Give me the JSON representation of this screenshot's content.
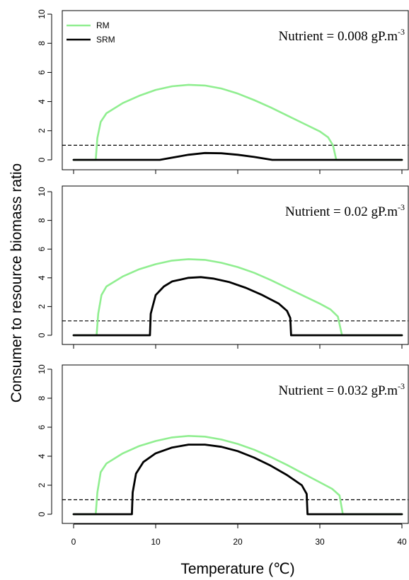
{
  "chart_data": {
    "type": "line",
    "ylabel": "Consumer to resource biomass ratio",
    "xlabel": "Temperature (℃)",
    "xlim": [
      0,
      40
    ],
    "ylim": [
      0,
      10
    ],
    "x_ticks": [
      0,
      10,
      20,
      30,
      40
    ],
    "y_ticks": [
      0,
      2,
      4,
      6,
      8,
      10
    ],
    "legend": {
      "position": "top-left",
      "entries": [
        {
          "name": "RM",
          "color": "#90ee90"
        },
        {
          "name": "SRM",
          "color": "#000000"
        }
      ]
    },
    "reference_line": {
      "y": 1,
      "style": "dashed",
      "color": "#000000"
    },
    "panels": [
      {
        "annotation": {
          "text": "Nutrient = 0.008 gP.m",
          "superscript": "-3"
        },
        "series": [
          {
            "name": "RM",
            "color": "#90ee90",
            "points": [
              [
                0,
                0
              ],
              [
                2.7,
                0
              ],
              [
                2.9,
                1.5
              ],
              [
                3.3,
                2.6
              ],
              [
                4,
                3.2
              ],
              [
                6,
                3.9
              ],
              [
                8,
                4.4
              ],
              [
                10,
                4.8
              ],
              [
                12,
                5.05
              ],
              [
                14,
                5.15
              ],
              [
                16,
                5.1
              ],
              [
                18,
                4.9
              ],
              [
                20,
                4.55
              ],
              [
                22,
                4.1
              ],
              [
                24,
                3.6
              ],
              [
                26,
                3.05
              ],
              [
                28,
                2.5
              ],
              [
                30,
                1.95
              ],
              [
                31,
                1.55
              ],
              [
                31.6,
                1.0
              ],
              [
                32,
                0
              ],
              [
                40,
                0
              ]
            ]
          },
          {
            "name": "SRM",
            "color": "#000000",
            "points": [
              [
                0,
                0
              ],
              [
                10.5,
                0
              ],
              [
                12,
                0.15
              ],
              [
                14,
                0.35
              ],
              [
                16,
                0.47
              ],
              [
                18,
                0.45
              ],
              [
                20,
                0.35
              ],
              [
                22,
                0.2
              ],
              [
                24,
                0.02
              ],
              [
                24.2,
                0
              ],
              [
                40,
                0
              ]
            ]
          }
        ]
      },
      {
        "annotation": {
          "text": "Nutrient = 0.02 gP.m",
          "superscript": "-3"
        },
        "series": [
          {
            "name": "RM",
            "color": "#90ee90",
            "points": [
              [
                0,
                0
              ],
              [
                2.8,
                0
              ],
              [
                3,
                1.5
              ],
              [
                3.4,
                2.8
              ],
              [
                4,
                3.4
              ],
              [
                6,
                4.1
              ],
              [
                8,
                4.6
              ],
              [
                10,
                4.95
              ],
              [
                12,
                5.2
              ],
              [
                14,
                5.3
              ],
              [
                16,
                5.25
              ],
              [
                18,
                5.05
              ],
              [
                20,
                4.75
              ],
              [
                22,
                4.35
              ],
              [
                24,
                3.85
              ],
              [
                26,
                3.3
              ],
              [
                28,
                2.75
              ],
              [
                30,
                2.2
              ],
              [
                31.3,
                1.8
              ],
              [
                32.2,
                1.3
              ],
              [
                32.7,
                0
              ],
              [
                40,
                0
              ]
            ]
          },
          {
            "name": "SRM",
            "color": "#000000",
            "points": [
              [
                0,
                0
              ],
              [
                9.3,
                0
              ],
              [
                9.4,
                1.5
              ],
              [
                10,
                2.8
              ],
              [
                11,
                3.4
              ],
              [
                12,
                3.75
              ],
              [
                14,
                4.0
              ],
              [
                15.5,
                4.05
              ],
              [
                17,
                3.95
              ],
              [
                19,
                3.7
              ],
              [
                21,
                3.3
              ],
              [
                23,
                2.8
              ],
              [
                25,
                2.2
              ],
              [
                26,
                1.7
              ],
              [
                26.4,
                1.2
              ],
              [
                26.5,
                0
              ],
              [
                40,
                0
              ]
            ]
          }
        ]
      },
      {
        "annotation": {
          "text": "Nutrient = 0.032 gP.m",
          "superscript": "-3"
        },
        "series": [
          {
            "name": "RM",
            "color": "#90ee90",
            "points": [
              [
                0,
                0
              ],
              [
                2.7,
                0
              ],
              [
                2.9,
                1.5
              ],
              [
                3.3,
                2.9
              ],
              [
                4,
                3.5
              ],
              [
                6,
                4.2
              ],
              [
                8,
                4.7
              ],
              [
                10,
                5.05
              ],
              [
                12,
                5.3
              ],
              [
                14,
                5.4
              ],
              [
                16,
                5.35
              ],
              [
                18,
                5.15
              ],
              [
                20,
                4.85
              ],
              [
                22,
                4.45
              ],
              [
                24,
                3.95
              ],
              [
                26,
                3.4
              ],
              [
                28,
                2.8
              ],
              [
                30,
                2.2
              ],
              [
                31.5,
                1.75
              ],
              [
                32.4,
                1.3
              ],
              [
                32.8,
                0
              ],
              [
                40,
                0
              ]
            ]
          },
          {
            "name": "SRM",
            "color": "#000000",
            "points": [
              [
                0,
                0
              ],
              [
                7.1,
                0
              ],
              [
                7.2,
                1.5
              ],
              [
                7.6,
                2.8
              ],
              [
                8.5,
                3.6
              ],
              [
                10,
                4.2
              ],
              [
                12,
                4.6
              ],
              [
                14,
                4.8
              ],
              [
                16,
                4.8
              ],
              [
                18,
                4.65
              ],
              [
                20,
                4.35
              ],
              [
                22,
                3.9
              ],
              [
                24,
                3.35
              ],
              [
                26,
                2.7
              ],
              [
                27.8,
                2.0
              ],
              [
                28.4,
                1.4
              ],
              [
                28.5,
                0
              ],
              [
                40,
                0
              ]
            ]
          }
        ]
      }
    ]
  }
}
